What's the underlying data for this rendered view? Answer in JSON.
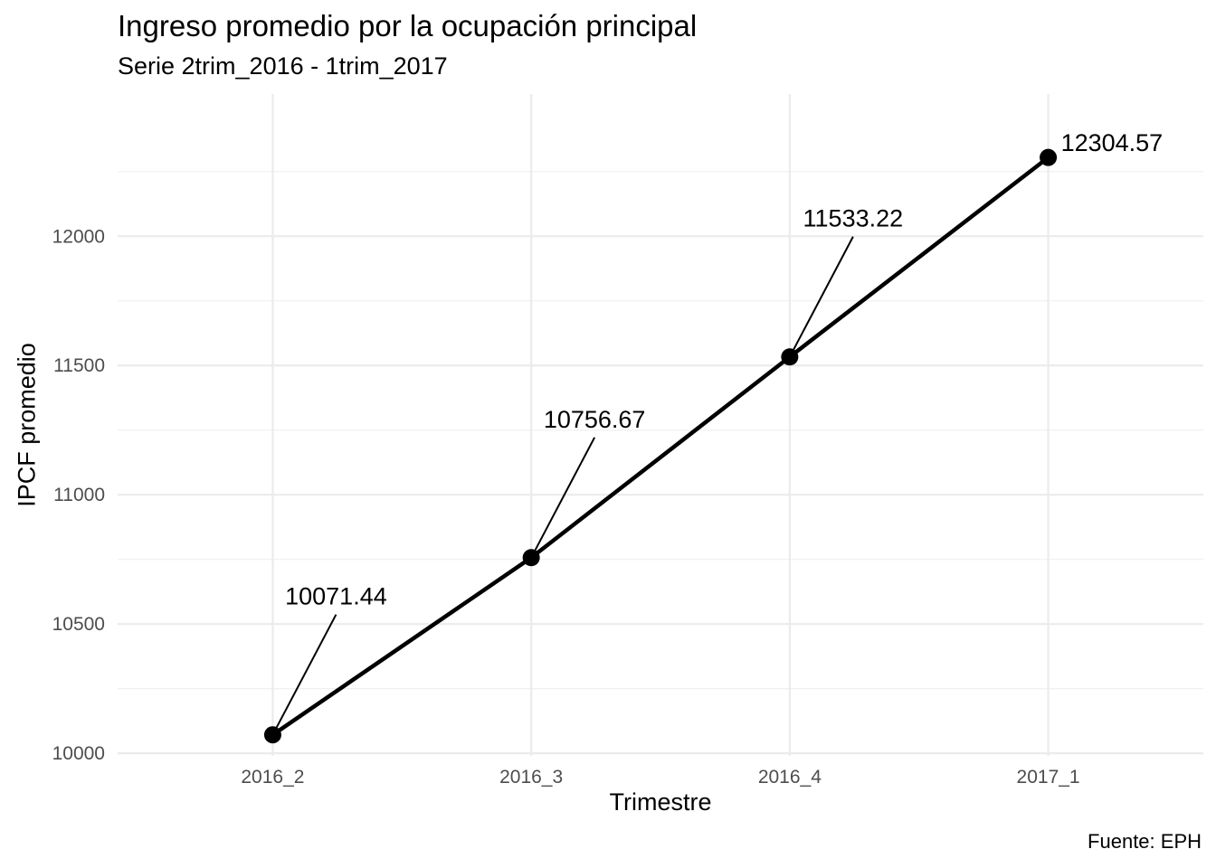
{
  "chart_data": {
    "type": "line",
    "title": "Ingreso promedio por la ocupación principal",
    "subtitle": "Serie 2trim_2016 - 1trim_2017",
    "xlabel": "Trimestre",
    "ylabel": "IPCF promedio",
    "caption": "Fuente: EPH",
    "categories": [
      "2016_2",
      "2016_3",
      "2016_4",
      "2017_1"
    ],
    "values": [
      10071.44,
      10756.67,
      11533.22,
      12304.57
    ],
    "value_labels": [
      "10071.44",
      "10756.67",
      "11533.22",
      "12304.57"
    ],
    "y_ticks": [
      10000,
      10500,
      11000,
      11500,
      12000
    ],
    "ylim": [
      9990,
      12550
    ],
    "grid": true,
    "legend": "none",
    "line_color": "#000000"
  }
}
